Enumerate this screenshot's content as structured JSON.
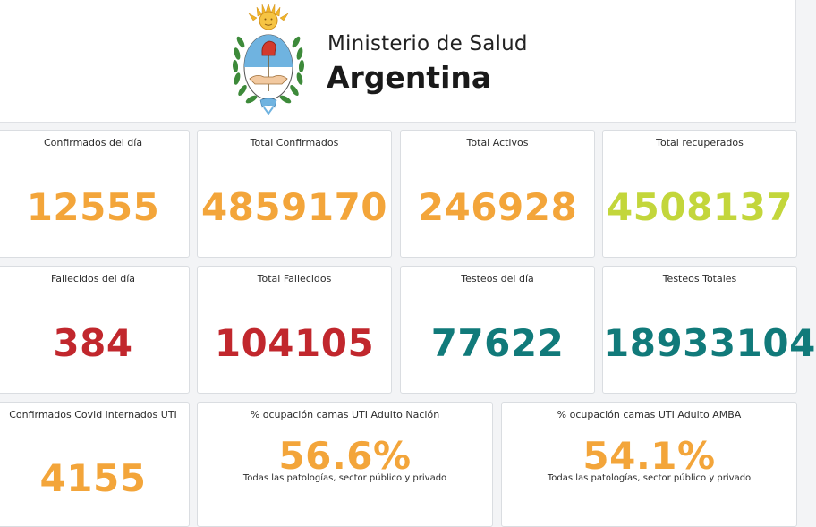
{
  "header": {
    "ministry": "Ministerio de Salud",
    "country": "Argentina"
  },
  "colors": {
    "orange": "#f3a53a",
    "green": "#c3d63b",
    "red": "#c1272d",
    "teal": "#117a7a"
  },
  "cards": {
    "confirmados_dia": {
      "label": "Confirmados del día",
      "value": "12555"
    },
    "total_confirmados": {
      "label": "Total Confirmados",
      "value": "4859170"
    },
    "total_activos": {
      "label": "Total Activos",
      "value": "246928"
    },
    "total_recuperados": {
      "label": "Total recuperados",
      "value": "4508137"
    },
    "fallecidos_dia": {
      "label": "Fallecidos del día",
      "value": "384"
    },
    "total_fallecidos": {
      "label": "Total Fallecidos",
      "value": "104105"
    },
    "testeos_dia": {
      "label": "Testeos del día",
      "value": "77622"
    },
    "testeos_totales": {
      "label": "Testeos Totales",
      "value": "18933104"
    },
    "internados_uti": {
      "label": "Confirmados Covid internados UTI",
      "value": "4155"
    },
    "ocupacion_nacion": {
      "label": "% ocupación camas UTI Adulto Nación",
      "value": "56.6%",
      "sub": "Todas las patologías, sector público y privado"
    },
    "ocupacion_amba": {
      "label": "% ocupación camas UTI Adulto AMBA",
      "value": "54.1%",
      "sub": "Todas las patologías, sector público y privado"
    }
  }
}
